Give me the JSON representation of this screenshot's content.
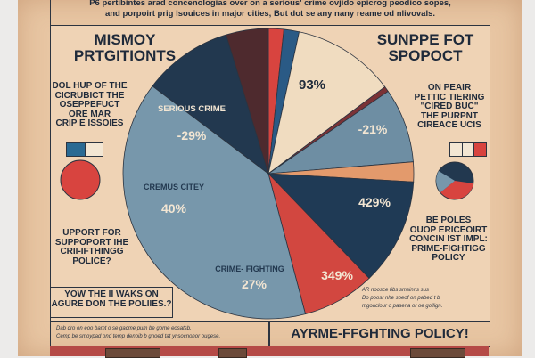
{
  "intro": {
    "line1": "P6 pertibintes arad concenologias over on a serious' crime ovjido epicrog peodico sopes,",
    "line2": "and porpoirt prig lsouices in major cities, But dot se any nany reame od nlivovals."
  },
  "left": {
    "heading": [
      "MISMOY",
      "PRTGITIONTS"
    ],
    "blurb": [
      "DOL HUP OF THE",
      "CICRUBICT THE",
      "OSEPPEFUCT",
      "ORE MAR",
      "CRIP E ISSOIES"
    ],
    "question": [
      "UPPORT FOR",
      "SUPPOPORT IHE",
      "CRII-IFTHINGG",
      "POLICE?"
    ],
    "callout": [
      "YOW THE II WAKS ON",
      "AGURE DON THE POLIIES.?"
    ]
  },
  "right": {
    "heading": [
      "SUNPPE FOT",
      "SPOPOCT"
    ],
    "blurb": [
      "ON PEAIR",
      "PETTIC TIERING",
      "\"CIRED BUC\"",
      "THE PURPNT",
      "CIREACE UCIS"
    ],
    "question": [
      "BE POLES",
      "OUOP ERICEOIRT",
      "CONCIN IST IMPL:",
      "PRIME-FIGHTIGG",
      "POLICY"
    ],
    "fineprint": [
      "AR noosce tibs smsinns sus",
      "Do poosr nhe soeof on pabed t b",
      "mgoaclour o pasena or oe gollign."
    ]
  },
  "footer": {
    "fineprint": [
      "Dab dro on eoo bamt o se gacme pum be gome eosatsb.",
      "Cemp be smoypad ond temp denoib b gnoed tat ynsocnonor ougese."
    ],
    "banner": "AYRME-FFGHTING POLICY!"
  },
  "chart_data": {
    "type": "pie",
    "title": "",
    "slices": [
      {
        "name": "red-top",
        "share": 0.017,
        "label": "",
        "color": "#d8443f"
      },
      {
        "name": "blue-top",
        "share": 0.017,
        "label": "",
        "color": "#2a5a85"
      },
      {
        "name": "cream",
        "share": 0.114,
        "label": "93%",
        "color": "#f0dcc0"
      },
      {
        "name": "thin-maroon",
        "share": 0.006,
        "label": "",
        "color": "#7a3236"
      },
      {
        "name": "gray-blue",
        "share": 0.083,
        "label": "-21%",
        "color": "#6e8ea3"
      },
      {
        "name": "orange",
        "share": 0.022,
        "label": "",
        "color": "#e39a6c"
      },
      {
        "name": "navy-right",
        "share": 0.119,
        "label": "429%",
        "color": "#1f3a55"
      },
      {
        "name": "red",
        "share": 0.081,
        "label": "349%",
        "color": "#d24740"
      },
      {
        "name": "light-blue",
        "share": 0.394,
        "label": "40%",
        "sublabel": "CREMUS CITEY",
        "label2": "27%",
        "sublabel2": "CRIME- FIGHTING",
        "color": "#7797ab"
      },
      {
        "name": "navy-left",
        "share": 0.1,
        "label": "-29%",
        "sublabel": "SERIOUS CRIME",
        "color": "#22384f"
      },
      {
        "name": "maroon",
        "share": 0.047,
        "label": "",
        "color": "#4e2a2e"
      }
    ],
    "start_angle_deg": 0
  },
  "colors": {
    "paper": "#e8c6a3",
    "ink": "#1f2a3a"
  }
}
